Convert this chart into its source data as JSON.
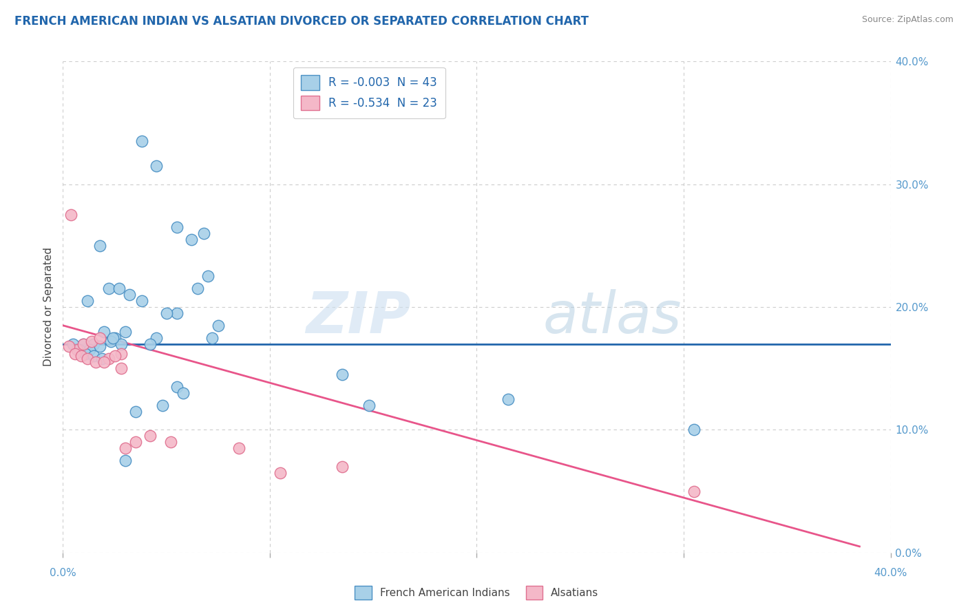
{
  "title": "FRENCH AMERICAN INDIAN VS ALSATIAN DIVORCED OR SEPARATED CORRELATION CHART",
  "source": "Source: ZipAtlas.com",
  "ylabel": "Divorced or Separated",
  "legend_blue_r": "R = -0.003",
  "legend_blue_n": "N = 43",
  "legend_pink_r": "R = -0.534",
  "legend_pink_n": "N = 23",
  "xlim": [
    0.0,
    40.0
  ],
  "ylim": [
    0.0,
    40.0
  ],
  "xticks": [
    0.0,
    10.0,
    20.0,
    30.0,
    40.0
  ],
  "yticks": [
    0.0,
    10.0,
    20.0,
    30.0,
    40.0
  ],
  "watermark_zip": "ZIP",
  "watermark_atlas": "atlas",
  "blue_color": "#a8d0e8",
  "pink_color": "#f4b8c8",
  "blue_edge_color": "#4a90c4",
  "pink_edge_color": "#e07090",
  "blue_line_color": "#2166ac",
  "pink_line_color": "#e8558a",
  "grid_color": "#cccccc",
  "title_color": "#2166ac",
  "axis_tick_color": "#5599cc",
  "blue_points_x": [
    3.8,
    4.5,
    5.5,
    6.8,
    6.2,
    7.5,
    1.2,
    1.8,
    2.2,
    2.7,
    3.2,
    3.8,
    4.5,
    5.5,
    7.0,
    1.0,
    1.5,
    2.0,
    2.5,
    3.0,
    4.2,
    5.0,
    6.5,
    7.2,
    1.3,
    1.8,
    2.3,
    2.8,
    3.5,
    4.8,
    5.5,
    13.5,
    14.8,
    21.5,
    30.5,
    0.5,
    0.8,
    1.1,
    1.5,
    1.9,
    2.4,
    3.0,
    5.8
  ],
  "blue_points_y": [
    33.5,
    31.5,
    26.5,
    26.0,
    25.5,
    18.5,
    20.5,
    25.0,
    21.5,
    21.5,
    21.0,
    20.5,
    17.5,
    19.5,
    22.5,
    17.0,
    17.0,
    18.0,
    17.5,
    18.0,
    17.0,
    19.5,
    21.5,
    17.5,
    16.5,
    16.8,
    17.2,
    17.0,
    11.5,
    12.0,
    13.5,
    14.5,
    12.0,
    12.5,
    10.0,
    17.0,
    16.5,
    16.2,
    16.0,
    15.8,
    17.5,
    7.5,
    13.0
  ],
  "pink_points_x": [
    0.4,
    0.7,
    1.0,
    1.4,
    1.8,
    2.2,
    2.8,
    3.5,
    4.2,
    5.2,
    8.5,
    10.5,
    13.5,
    0.3,
    0.6,
    0.9,
    1.2,
    1.6,
    2.0,
    2.5,
    3.0,
    30.5,
    2.8
  ],
  "pink_points_y": [
    27.5,
    16.5,
    17.0,
    17.2,
    17.5,
    15.8,
    16.2,
    9.0,
    9.5,
    9.0,
    8.5,
    6.5,
    7.0,
    16.8,
    16.2,
    16.0,
    15.8,
    15.5,
    15.5,
    16.0,
    8.5,
    5.0,
    15.0
  ],
  "blue_trend_x": [
    0.0,
    40.0
  ],
  "blue_trend_y": [
    17.0,
    17.0
  ],
  "pink_trend_x": [
    0.0,
    38.5
  ],
  "pink_trend_y": [
    18.5,
    0.5
  ]
}
